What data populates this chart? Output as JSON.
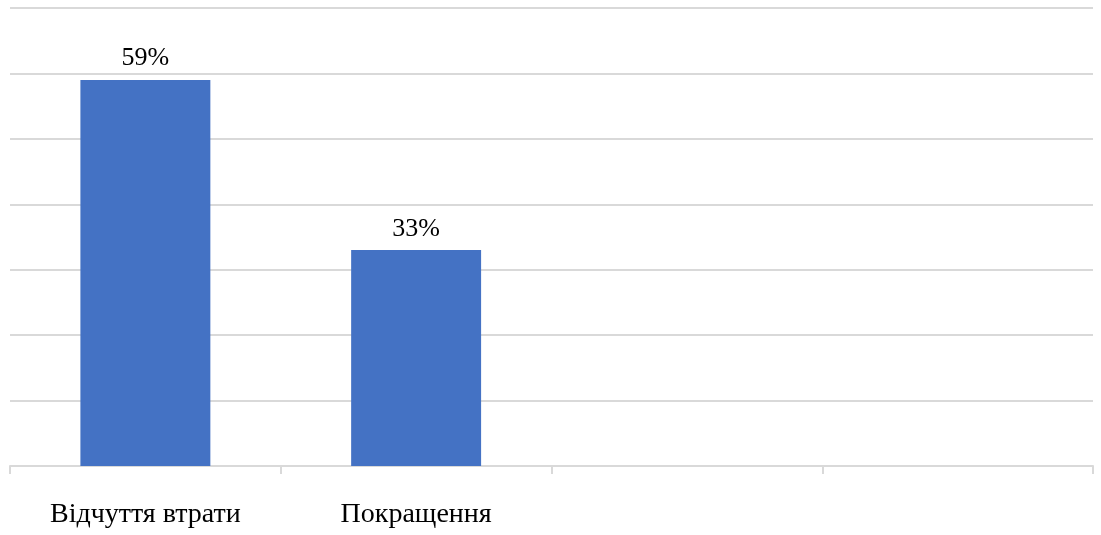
{
  "chart_data": {
    "type": "bar",
    "categories": [
      "Відчуття втрати",
      "Покращення",
      null,
      null
    ],
    "series": [
      {
        "color": "#4472c4",
        "values": [
          59,
          33,
          null,
          null
        ],
        "value_labels": [
          "59%",
          "33%",
          null,
          null
        ]
      }
    ],
    "ylim": [
      0,
      70
    ],
    "yticks": [
      {
        "value": 0,
        "label": null
      },
      {
        "value": 10,
        "label": null
      },
      {
        "value": 20,
        "label": null
      },
      {
        "value": 30,
        "label": null
      },
      {
        "value": 40,
        "label": null
      },
      {
        "value": 50,
        "label": null
      },
      {
        "value": 60,
        "label": null
      },
      {
        "value": 70,
        "label": null
      }
    ],
    "grid": "y",
    "tick_labels": "x"
  }
}
